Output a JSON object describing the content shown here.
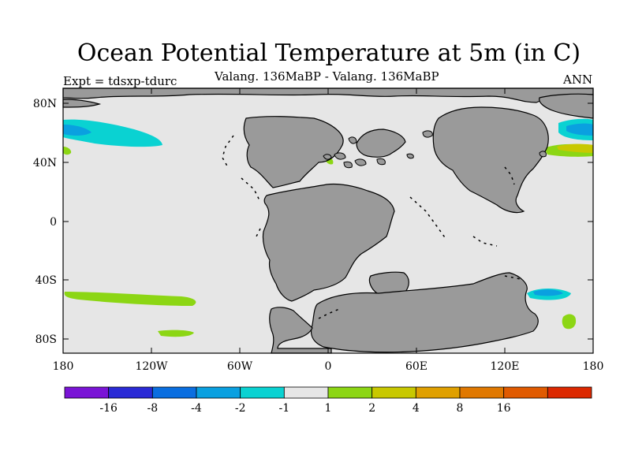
{
  "title": "Ocean Potential Temperature at 5m (in C)",
  "subtitle": "Valang. 136MaBP - Valang.  136MaBP",
  "expt_label": "Expt = tdsxp-tdurc",
  "season": "ANN",
  "lat_labels": [
    "80N",
    "40N",
    "0",
    "40S",
    "80S"
  ],
  "lon_labels": [
    "180",
    "120W",
    "60W",
    "0",
    "60E",
    "120E",
    "180"
  ],
  "colorbar": {
    "colors": [
      "#7a14d6",
      "#2a2ad6",
      "#0a6ee0",
      "#0aa0e0",
      "#0ad2d2",
      "#e6e6e6",
      "#8cd614",
      "#c8c800",
      "#e0a000",
      "#e07800",
      "#e05a00",
      "#dc2800"
    ],
    "labels": [
      "-16",
      "-8",
      "-4",
      "-2",
      "-1",
      "1",
      "2",
      "4",
      "8",
      "16"
    ]
  },
  "colors": {
    "ocean": "#e6e6e6",
    "land": "#9a9a9a"
  }
}
